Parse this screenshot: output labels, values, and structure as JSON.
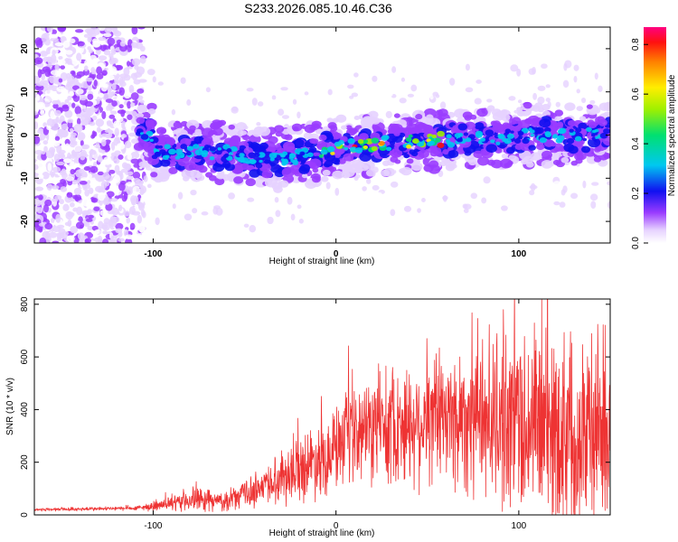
{
  "title": "S233.2026.085.10.46.C36",
  "chart_data": [
    {
      "type": "heatmap",
      "xlabel": "Height of straight line (km)",
      "ylabel": "Frequency (Hz)",
      "xlim": [
        -165,
        150
      ],
      "ylim": [
        -25,
        25
      ],
      "xticks": [
        -100,
        0,
        100
      ],
      "yticks": [
        -20,
        -10,
        0,
        10,
        20
      ],
      "colorbar": {
        "label": "Normalized spectral amplitude",
        "range": [
          0.0,
          0.87
        ],
        "ticks": [
          "0.0",
          "0.2",
          "0.4",
          "0.6",
          "0.8"
        ]
      },
      "ridge": [
        {
          "h": -100,
          "f": -4
        },
        {
          "h": -60,
          "f": -4
        },
        {
          "h": -40,
          "f": -6
        },
        {
          "h": -20,
          "f": -5
        },
        {
          "h": 0,
          "f": -3
        },
        {
          "h": 25,
          "f": -2
        },
        {
          "h": 55,
          "f": -1
        },
        {
          "h": 80,
          "f": -1
        },
        {
          "h": 100,
          "f": 0
        },
        {
          "h": 150,
          "f": 0
        }
      ]
    },
    {
      "type": "line",
      "xlabel": "Height of straight line (km)",
      "ylabel": "SNR (10 * v/v)",
      "xlim": [
        -165,
        150
      ],
      "ylim": [
        0,
        820
      ],
      "xticks": [
        -100,
        0,
        100
      ],
      "yticks": [
        0,
        200,
        400,
        600,
        800
      ],
      "color": "#ee3333",
      "envelope": [
        {
          "h": -165,
          "base": 20,
          "spread": 8
        },
        {
          "h": -110,
          "base": 25,
          "spread": 10
        },
        {
          "h": -90,
          "base": 40,
          "spread": 30
        },
        {
          "h": -80,
          "base": 60,
          "spread": 60
        },
        {
          "h": -60,
          "base": 50,
          "spread": 40
        },
        {
          "h": -40,
          "base": 110,
          "spread": 90
        },
        {
          "h": -20,
          "base": 180,
          "spread": 150
        },
        {
          "h": 0,
          "base": 250,
          "spread": 200
        },
        {
          "h": 20,
          "base": 330,
          "spread": 250
        },
        {
          "h": 50,
          "base": 360,
          "spread": 300
        },
        {
          "h": 80,
          "base": 380,
          "spread": 380
        },
        {
          "h": 100,
          "base": 360,
          "spread": 450
        },
        {
          "h": 120,
          "base": 330,
          "spread": 480
        },
        {
          "h": 150,
          "base": 320,
          "spread": 450
        }
      ]
    }
  ]
}
